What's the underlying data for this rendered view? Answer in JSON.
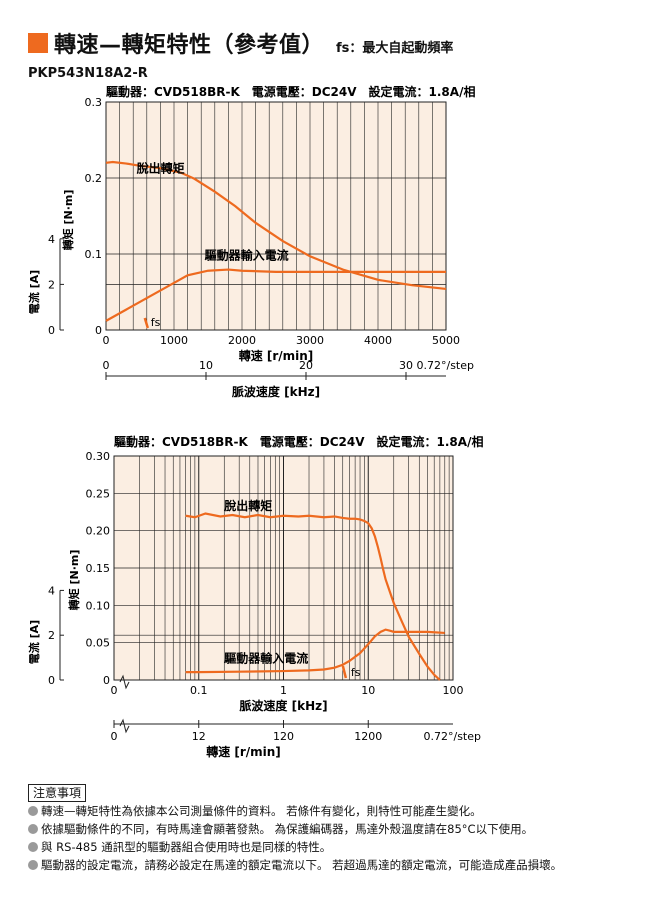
{
  "header": {
    "title": "轉速—轉矩特性（參考值）",
    "subtitle": "fs：最大自起動頻率"
  },
  "model": "PKP543N18A2-R",
  "colors": {
    "accent": "#ee6a1f",
    "plot_bg": "#fbeee2",
    "grid": "#222222"
  },
  "chart_data": [
    {
      "type": "line",
      "info": "驅動器：CVD518BR-K　電源電壓：DC24V　設定電流：1.8A/相",
      "xlabel": "轉速 [r/min]",
      "ylabel": "轉矩 [N·m]",
      "y2label": "電流 [A]",
      "xlim": [
        0,
        5000
      ],
      "ylim": [
        0,
        0.3
      ],
      "x_ticks": [
        "0",
        "1000",
        "2000",
        "3000",
        "4000",
        "5000"
      ],
      "y_ticks": [
        "0",
        "0.1",
        "0.2",
        "0.3"
      ],
      "y2_ticks": [
        "0",
        "2",
        "4"
      ],
      "x2label": "脈波速度 [kHz]",
      "x2_ticks": [
        "0",
        "10",
        "20",
        "30"
      ],
      "x2_unit": "0.72°/step",
      "fs_label": "fs",
      "fs_x": 600,
      "series": [
        {
          "name": "脫出轉矩",
          "color": "#ee6a1f",
          "x": [
            0,
            100,
            300,
            500,
            800,
            1100,
            1300,
            1600,
            1900,
            2200,
            2600,
            3000,
            3500,
            4000,
            4500,
            5000
          ],
          "y": [
            0.22,
            0.221,
            0.219,
            0.216,
            0.213,
            0.207,
            0.199,
            0.182,
            0.163,
            0.141,
            0.117,
            0.097,
            0.079,
            0.066,
            0.059,
            0.054
          ]
        },
        {
          "name": "驅動器輸入電流",
          "color": "#ee6a1f",
          "x": [
            0,
            300,
            600,
            900,
            1200,
            1500,
            1800,
            2000,
            2500,
            3000,
            3500,
            4000,
            4500,
            5000
          ],
          "y": [
            0.4,
            0.9,
            1.4,
            1.9,
            2.4,
            2.6,
            2.65,
            2.6,
            2.55,
            2.55,
            2.55,
            2.55,
            2.55,
            2.55
          ]
        }
      ]
    },
    {
      "type": "line",
      "info": "驅動器：CVD518BR-K　電源電壓：DC24V　設定電流：1.8A/相",
      "xlabel": "脈波速度 [kHz]",
      "ylabel": "轉矩 [N·m]",
      "y2label": "電流 [A]",
      "x_scale": "log",
      "xlim": [
        0.01,
        100
      ],
      "ylim": [
        0,
        0.3
      ],
      "x_ticks": [
        "0.1",
        "1",
        "10",
        "100"
      ],
      "x_zero_label": "0",
      "y_ticks": [
        "0",
        "0.05",
        "0.10",
        "0.15",
        "0.20",
        "0.25",
        "0.30"
      ],
      "y2_ticks": [
        "0",
        "2",
        "4"
      ],
      "x2label": "轉速 [r/min]",
      "x2_ticks": [
        "0",
        "12",
        "120",
        "1200"
      ],
      "x2_unit": "0.72°/step",
      "fs_label": "fs",
      "fs_x": 5.3,
      "series": [
        {
          "name": "脫出轉矩",
          "color": "#ee6a1f",
          "x": [
            0.07,
            0.09,
            0.12,
            0.18,
            0.25,
            0.35,
            0.5,
            0.7,
            1,
            1.5,
            2,
            3,
            4,
            5,
            6,
            7,
            8,
            9,
            10,
            11,
            12,
            13,
            14,
            15,
            16,
            18,
            20,
            25,
            30,
            40,
            50,
            60,
            70
          ],
          "y": [
            0.22,
            0.218,
            0.223,
            0.219,
            0.221,
            0.218,
            0.221,
            0.218,
            0.22,
            0.219,
            0.22,
            0.218,
            0.219,
            0.217,
            0.216,
            0.216,
            0.215,
            0.213,
            0.21,
            0.203,
            0.192,
            0.178,
            0.163,
            0.148,
            0.135,
            0.118,
            0.103,
            0.078,
            0.058,
            0.035,
            0.018,
            0.007,
            0.0
          ]
        },
        {
          "name": "驅動器輸入電流",
          "color": "#ee6a1f",
          "x": [
            0.07,
            0.1,
            0.3,
            1,
            2,
            3,
            4,
            5,
            6,
            8,
            10,
            12,
            14,
            16,
            18,
            20,
            30,
            50,
            80
          ],
          "y": [
            0.35,
            0.35,
            0.37,
            0.4,
            0.43,
            0.47,
            0.55,
            0.68,
            0.85,
            1.2,
            1.6,
            1.95,
            2.15,
            2.25,
            2.2,
            2.15,
            2.15,
            2.15,
            2.1
          ]
        }
      ]
    }
  ],
  "notes": {
    "title": "注意事項",
    "lines": [
      "轉速—轉矩特性為依據本公司測量條件的資料。 若條件有變化，則特性可能產生變化。",
      "依據驅動條件的不同，有時馬達會顯著發熱。 為保護編碼器，馬達外殼溫度請在85°C以下使用。",
      "與 RS-485 通訊型的驅動器組合使用時也是同樣的特性。",
      "驅動器的設定電流，請務必設定在馬達的額定電流以下。 若超過馬達的額定電流，可能造成產品損壞。"
    ]
  }
}
